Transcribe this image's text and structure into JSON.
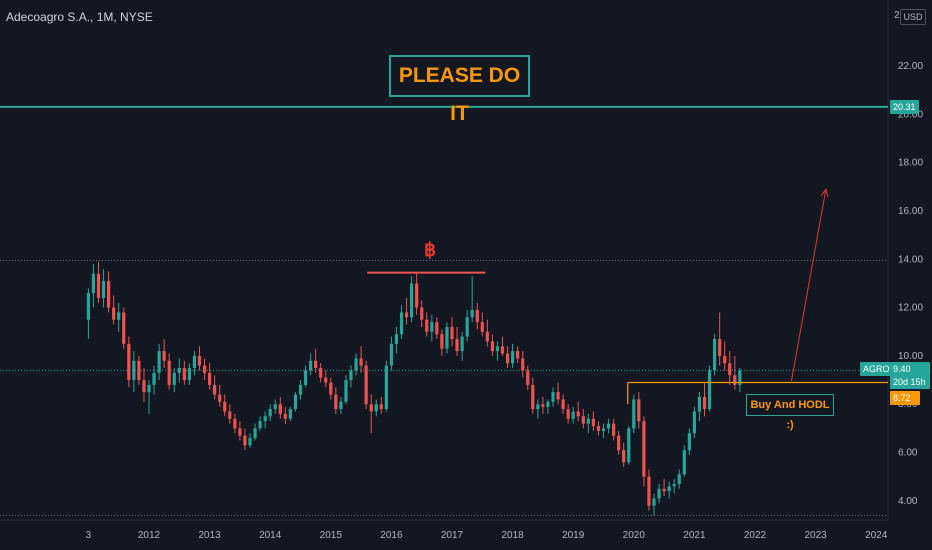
{
  "header": {
    "symbol_line": "Adecoagro S.A., 1M, NYSE",
    "currency": "USD",
    "price_scale_top": "2"
  },
  "annotations": {
    "banner": "PLEASE DO IT",
    "callout": "Buy And HODL :)",
    "bitcoin_mark": "฿"
  },
  "price_labels": {
    "resistance": "20.31",
    "last_price": "9.40",
    "countdown": "20d 15h",
    "support": "8.72",
    "ticker": "AGRO"
  },
  "colors": {
    "up": "#26a69a",
    "down": "#ef5350",
    "orange": "#ff9800",
    "background": "#131722"
  },
  "chart_data": {
    "type": "candlestick",
    "title": "Adecoagro S.A., 1M, NYSE",
    "interval": "1M",
    "exchange": "NYSE",
    "ylim": [
      3.2,
      24
    ],
    "y_ticks": [
      4,
      6,
      8,
      10,
      12,
      14,
      16,
      18,
      20,
      22
    ],
    "y_tick_labels": [
      "4.00",
      "6.00",
      "8.00",
      "10.00",
      "12.00",
      "14.00",
      "16.00",
      "18.00",
      "20.00",
      "22.00"
    ],
    "x_tick_labels": [
      "3",
      "2012",
      "2013",
      "2014",
      "2015",
      "2016",
      "2017",
      "2018",
      "2019",
      "2020",
      "2021",
      "2022",
      "2023",
      "2024"
    ],
    "x_tick_times": [
      2011.0,
      2012.0,
      2013.0,
      2014.0,
      2015.0,
      2016.0,
      2017.0,
      2018.0,
      2019.0,
      2020.0,
      2021.0,
      2022.0,
      2023.0,
      2024.0
    ],
    "xlim": [
      2010.0,
      2024.3
    ],
    "hlines": [
      {
        "price": 20.31,
        "color": "#26a69a",
        "style": "solid"
      },
      {
        "price": 13.95,
        "color": "#787b86",
        "style": "dotted"
      },
      {
        "price": 9.4,
        "color": "#26a69a",
        "style": "dotted"
      },
      {
        "price": 3.4,
        "color": "#787b86",
        "style": "dotted"
      }
    ],
    "segments": [
      {
        "x1": 2015.6,
        "y1": 13.45,
        "x2": 2017.55,
        "y2": 13.45,
        "color": "#ef5350",
        "width": 2
      },
      {
        "x1": 2019.9,
        "y1": 8.9,
        "x2": 2024.3,
        "y2": 8.9,
        "color": "#ff9800",
        "width": 1.2
      },
      {
        "x1": 2019.9,
        "y1": 8.9,
        "x2": 2019.9,
        "y2": 8.0,
        "color": "#ff9800",
        "width": 1.2
      }
    ],
    "arrow": {
      "x1": 2022.6,
      "y1": 8.95,
      "x2": 2023.17,
      "y2": 16.9,
      "color": "#e53935"
    },
    "candles": [
      [
        2011.0,
        11.5,
        12.8,
        10.7,
        12.6
      ],
      [
        2011.083,
        12.6,
        13.8,
        12.0,
        13.4
      ],
      [
        2011.167,
        13.4,
        13.9,
        12.2,
        12.4
      ],
      [
        2011.25,
        12.4,
        13.6,
        12.0,
        13.1
      ],
      [
        2011.333,
        13.1,
        13.5,
        11.8,
        12.0
      ],
      [
        2011.417,
        12.0,
        12.5,
        11.3,
        11.5
      ],
      [
        2011.5,
        11.5,
        12.2,
        11.0,
        11.8
      ],
      [
        2011.583,
        11.8,
        12.0,
        10.3,
        10.5
      ],
      [
        2011.667,
        10.5,
        10.8,
        8.7,
        9.0
      ],
      [
        2011.75,
        9.0,
        10.2,
        8.5,
        9.8
      ],
      [
        2011.833,
        9.8,
        10.0,
        8.8,
        9.0
      ],
      [
        2011.917,
        9.0,
        9.5,
        8.1,
        8.5
      ],
      [
        2012.0,
        8.5,
        9.0,
        7.6,
        8.8
      ],
      [
        2012.083,
        8.8,
        9.6,
        8.4,
        9.3
      ],
      [
        2012.167,
        9.3,
        10.5,
        9.0,
        10.2
      ],
      [
        2012.25,
        10.2,
        10.7,
        9.5,
        9.8
      ],
      [
        2012.333,
        9.8,
        10.1,
        8.6,
        8.8
      ],
      [
        2012.417,
        8.8,
        9.5,
        8.5,
        9.3
      ],
      [
        2012.5,
        9.3,
        9.9,
        8.9,
        9.5
      ],
      [
        2012.583,
        9.5,
        9.8,
        8.8,
        9.0
      ],
      [
        2012.667,
        9.0,
        9.7,
        8.8,
        9.5
      ],
      [
        2012.75,
        9.5,
        10.2,
        9.2,
        10.0
      ],
      [
        2012.833,
        10.0,
        10.4,
        9.4,
        9.6
      ],
      [
        2012.917,
        9.6,
        9.9,
        9.0,
        9.3
      ],
      [
        2013.0,
        9.3,
        9.7,
        8.6,
        8.8
      ],
      [
        2013.083,
        8.8,
        9.2,
        8.2,
        8.4
      ],
      [
        2013.167,
        8.4,
        8.8,
        7.9,
        8.1
      ],
      [
        2013.25,
        8.1,
        8.4,
        7.5,
        7.7
      ],
      [
        2013.333,
        7.7,
        8.0,
        7.2,
        7.4
      ],
      [
        2013.417,
        7.4,
        7.6,
        6.8,
        7.0
      ],
      [
        2013.5,
        7.0,
        7.3,
        6.5,
        6.7
      ],
      [
        2013.583,
        6.7,
        7.0,
        6.1,
        6.3
      ],
      [
        2013.667,
        6.3,
        6.8,
        6.2,
        6.6
      ],
      [
        2013.75,
        6.6,
        7.2,
        6.5,
        7.0
      ],
      [
        2013.833,
        7.0,
        7.5,
        6.9,
        7.3
      ],
      [
        2013.917,
        7.3,
        7.7,
        7.0,
        7.5
      ],
      [
        2014.0,
        7.5,
        8.0,
        7.3,
        7.8
      ],
      [
        2014.083,
        7.8,
        8.2,
        7.6,
        8.0
      ],
      [
        2014.167,
        8.0,
        8.3,
        7.4,
        7.6
      ],
      [
        2014.25,
        7.6,
        7.9,
        7.2,
        7.4
      ],
      [
        2014.333,
        7.4,
        7.9,
        7.3,
        7.8
      ],
      [
        2014.417,
        7.8,
        8.5,
        7.7,
        8.4
      ],
      [
        2014.5,
        8.4,
        9.0,
        8.2,
        8.8
      ],
      [
        2014.583,
        8.8,
        9.6,
        8.7,
        9.4
      ],
      [
        2014.667,
        9.4,
        10.1,
        9.2,
        9.8
      ],
      [
        2014.75,
        9.8,
        10.3,
        9.3,
        9.5
      ],
      [
        2014.833,
        9.5,
        9.7,
        8.9,
        9.1
      ],
      [
        2014.917,
        9.1,
        9.4,
        8.7,
        8.9
      ],
      [
        2015.0,
        8.9,
        9.1,
        8.2,
        8.4
      ],
      [
        2015.083,
        8.4,
        8.7,
        7.6,
        7.8
      ],
      [
        2015.167,
        7.8,
        8.3,
        7.6,
        8.1
      ],
      [
        2015.25,
        8.1,
        9.2,
        8.0,
        9.0
      ],
      [
        2015.333,
        9.0,
        9.6,
        8.7,
        9.4
      ],
      [
        2015.417,
        9.4,
        10.1,
        9.2,
        9.9
      ],
      [
        2015.5,
        9.9,
        10.4,
        9.3,
        9.6
      ],
      [
        2015.583,
        9.6,
        9.8,
        7.8,
        8.0
      ],
      [
        2015.667,
        8.0,
        8.4,
        6.8,
        7.7
      ],
      [
        2015.75,
        7.7,
        8.2,
        7.5,
        8.0
      ],
      [
        2015.833,
        8.0,
        8.3,
        7.6,
        7.8
      ],
      [
        2015.917,
        7.8,
        9.8,
        7.7,
        9.6
      ],
      [
        2016.0,
        9.6,
        10.8,
        9.4,
        10.5
      ],
      [
        2016.083,
        10.5,
        11.2,
        10.1,
        10.9
      ],
      [
        2016.167,
        10.9,
        12.1,
        10.7,
        11.8
      ],
      [
        2016.25,
        11.8,
        12.4,
        11.3,
        11.6
      ],
      [
        2016.333,
        11.6,
        13.3,
        11.4,
        13.0
      ],
      [
        2016.417,
        13.0,
        13.4,
        11.7,
        12.0
      ],
      [
        2016.5,
        12.0,
        12.3,
        11.2,
        11.5
      ],
      [
        2016.583,
        11.5,
        11.8,
        10.8,
        11.0
      ],
      [
        2016.667,
        11.0,
        11.7,
        10.6,
        11.4
      ],
      [
        2016.75,
        11.4,
        11.6,
        10.7,
        10.9
      ],
      [
        2016.833,
        10.9,
        11.1,
        10.0,
        10.3
      ],
      [
        2016.917,
        10.3,
        11.4,
        10.1,
        11.2
      ],
      [
        2017.0,
        11.2,
        11.6,
        10.4,
        10.7
      ],
      [
        2017.083,
        10.7,
        11.2,
        10.0,
        10.2
      ],
      [
        2017.167,
        10.2,
        11.0,
        9.8,
        10.8
      ],
      [
        2017.25,
        10.8,
        11.9,
        10.6,
        11.6
      ],
      [
        2017.333,
        11.6,
        13.3,
        11.4,
        11.9
      ],
      [
        2017.417,
        11.9,
        12.2,
        11.1,
        11.4
      ],
      [
        2017.5,
        11.4,
        11.8,
        10.8,
        11.0
      ],
      [
        2017.583,
        11.0,
        11.5,
        10.4,
        10.6
      ],
      [
        2017.667,
        10.6,
        10.9,
        10.0,
        10.2
      ],
      [
        2017.75,
        10.2,
        10.6,
        9.8,
        10.4
      ],
      [
        2017.833,
        10.4,
        10.8,
        10.0,
        10.1
      ],
      [
        2017.917,
        10.1,
        10.4,
        9.5,
        9.7
      ],
      [
        2018.0,
        9.7,
        10.5,
        9.5,
        10.2
      ],
      [
        2018.083,
        10.2,
        10.4,
        9.7,
        9.9
      ],
      [
        2018.167,
        9.9,
        10.2,
        9.1,
        9.4
      ],
      [
        2018.25,
        9.4,
        9.6,
        8.6,
        8.8
      ],
      [
        2018.333,
        8.8,
        9.1,
        7.6,
        7.8
      ],
      [
        2018.417,
        7.8,
        8.2,
        7.4,
        8.0
      ],
      [
        2018.5,
        8.0,
        8.3,
        7.6,
        7.9
      ],
      [
        2018.583,
        7.9,
        8.2,
        7.6,
        8.1
      ],
      [
        2018.667,
        8.1,
        8.7,
        7.9,
        8.5
      ],
      [
        2018.75,
        8.5,
        8.9,
        8.0,
        8.2
      ],
      [
        2018.833,
        8.2,
        8.4,
        7.6,
        7.8
      ],
      [
        2018.917,
        7.8,
        8.0,
        7.2,
        7.4
      ],
      [
        2019.0,
        7.4,
        7.9,
        7.2,
        7.7
      ],
      [
        2019.083,
        7.7,
        8.1,
        7.3,
        7.5
      ],
      [
        2019.167,
        7.5,
        7.8,
        7.0,
        7.2
      ],
      [
        2019.25,
        7.2,
        7.6,
        6.8,
        7.4
      ],
      [
        2019.333,
        7.4,
        7.7,
        6.9,
        7.1
      ],
      [
        2019.417,
        7.1,
        7.3,
        6.7,
        6.9
      ],
      [
        2019.5,
        6.9,
        7.2,
        6.6,
        7.0
      ],
      [
        2019.583,
        7.0,
        7.4,
        6.8,
        7.2
      ],
      [
        2019.667,
        7.2,
        7.4,
        6.5,
        6.7
      ],
      [
        2019.75,
        6.7,
        6.9,
        5.9,
        6.1
      ],
      [
        2019.833,
        6.1,
        6.4,
        5.4,
        5.6
      ],
      [
        2019.917,
        5.6,
        7.1,
        5.5,
        7.0
      ],
      [
        2020.0,
        7.0,
        8.4,
        6.8,
        8.2
      ],
      [
        2020.083,
        8.2,
        8.5,
        7.0,
        7.3
      ],
      [
        2020.167,
        7.3,
        7.5,
        4.6,
        5.0
      ],
      [
        2020.25,
        5.0,
        5.3,
        3.6,
        3.8
      ],
      [
        2020.333,
        3.8,
        4.3,
        3.4,
        4.1
      ],
      [
        2020.417,
        4.1,
        4.7,
        3.9,
        4.5
      ],
      [
        2020.5,
        4.5,
        4.9,
        4.2,
        4.4
      ],
      [
        2020.583,
        4.4,
        4.8,
        4.1,
        4.6
      ],
      [
        2020.667,
        4.6,
        4.9,
        4.3,
        4.7
      ],
      [
        2020.75,
        4.7,
        5.3,
        4.5,
        5.1
      ],
      [
        2020.833,
        5.1,
        6.3,
        5.0,
        6.1
      ],
      [
        2020.917,
        6.1,
        7.0,
        5.9,
        6.8
      ],
      [
        2021.0,
        6.8,
        7.9,
        6.6,
        7.7
      ],
      [
        2021.083,
        7.7,
        8.5,
        7.3,
        8.3
      ],
      [
        2021.167,
        8.3,
        8.9,
        7.5,
        7.8
      ],
      [
        2021.25,
        7.8,
        9.6,
        7.7,
        9.4
      ],
      [
        2021.333,
        9.4,
        10.9,
        9.2,
        10.7
      ],
      [
        2021.417,
        10.7,
        11.8,
        9.6,
        10.0
      ],
      [
        2021.5,
        10.0,
        10.6,
        9.4,
        9.7
      ],
      [
        2021.583,
        9.7,
        10.2,
        8.8,
        9.2
      ],
      [
        2021.667,
        9.2,
        10.0,
        8.6,
        8.8
      ],
      [
        2021.75,
        8.8,
        9.5,
        8.5,
        9.4
      ]
    ]
  }
}
